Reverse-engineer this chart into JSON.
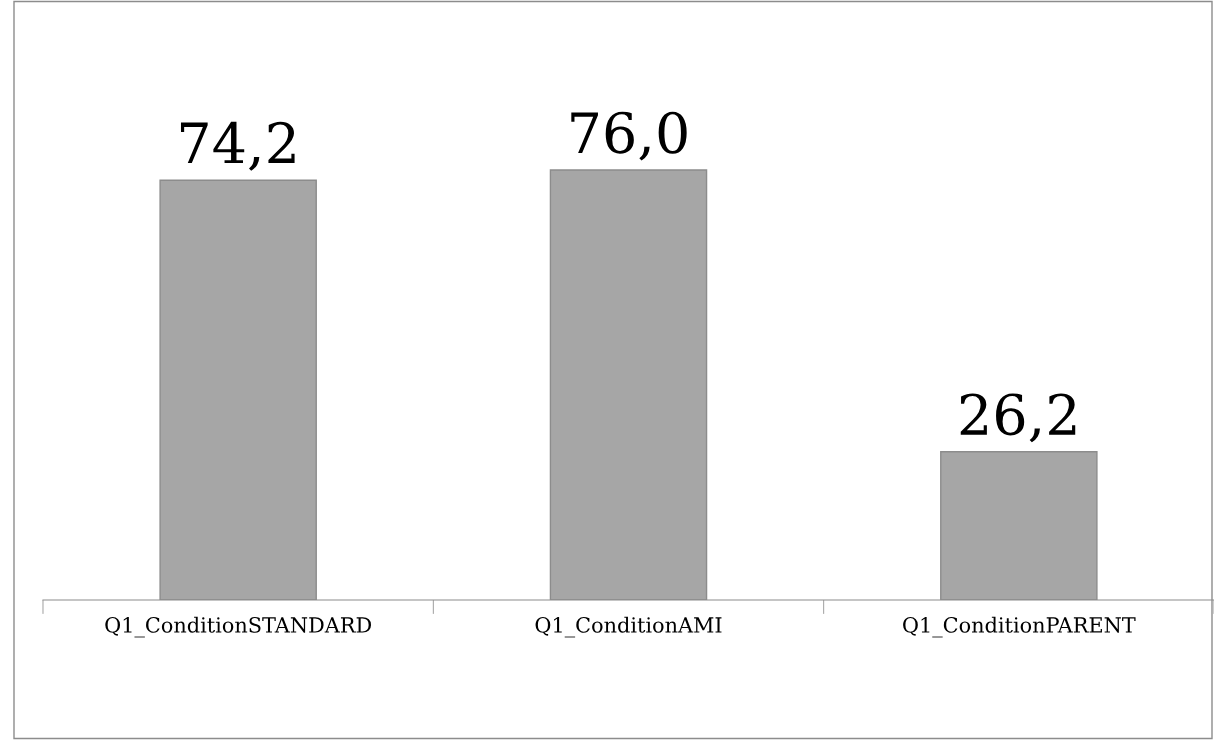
{
  "chart_data": {
    "type": "bar",
    "categories": [
      "Q1_ConditionSTANDARD",
      "Q1_ConditionAMI",
      "Q1_ConditionPARENT"
    ],
    "values": [
      74.2,
      76.0,
      26.2
    ],
    "value_labels": [
      "74,2",
      "76,0",
      "26,2"
    ],
    "color": "#a6a6a6",
    "tick_labels": "x"
  }
}
